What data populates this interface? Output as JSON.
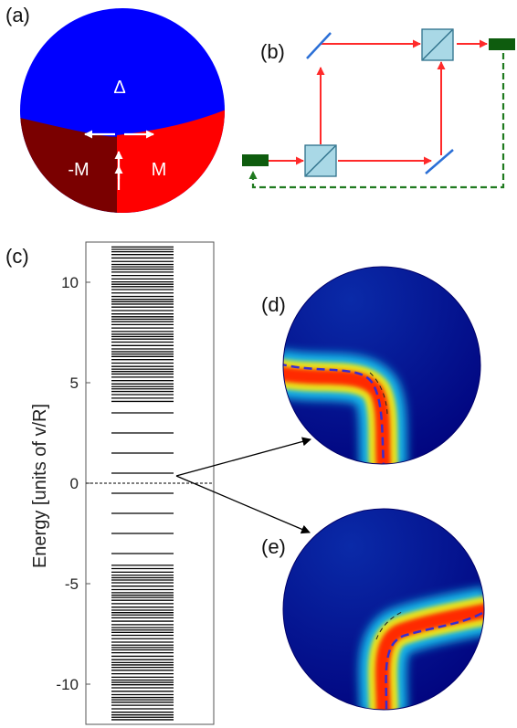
{
  "panel_labels": {
    "a": "(a)",
    "b": "(b)",
    "c": "(c)",
    "d": "(d)",
    "e": "(e)"
  },
  "sphere_labels": {
    "delta": "Δ",
    "minus_m": "-M",
    "plus_m": "M"
  },
  "colors": {
    "delta_region": "#0000ff",
    "minus_m_region": "#7a0000",
    "plus_m_region": "#ff0000",
    "beam": "#ff2a2a",
    "feedback": "#1f7a1f",
    "detector": "#0e5c0e",
    "mirror": "#2b6fd6",
    "splitter_fill": "#a9d8e6",
    "density_background": "#00008b",
    "density_peak": "#ff2a00",
    "dashed_path": "#3a2ccf"
  },
  "chart_data": {
    "type": "spectrum",
    "ylabel": "Energy [units of v/R]",
    "ylim": [
      -12,
      12
    ],
    "yticks": [
      -10,
      -5,
      0,
      5,
      10
    ],
    "zero_line": 0,
    "sparse_levels": [
      0.5,
      1.5,
      2.5,
      3.5,
      -0.5,
      -1.5,
      -2.5,
      -3.5
    ],
    "dense_bands": [
      {
        "from": 4.1,
        "to": 11.8
      },
      {
        "from": -4.1,
        "to": -11.8
      }
    ],
    "highlighted_levels": [
      0.5
    ]
  }
}
